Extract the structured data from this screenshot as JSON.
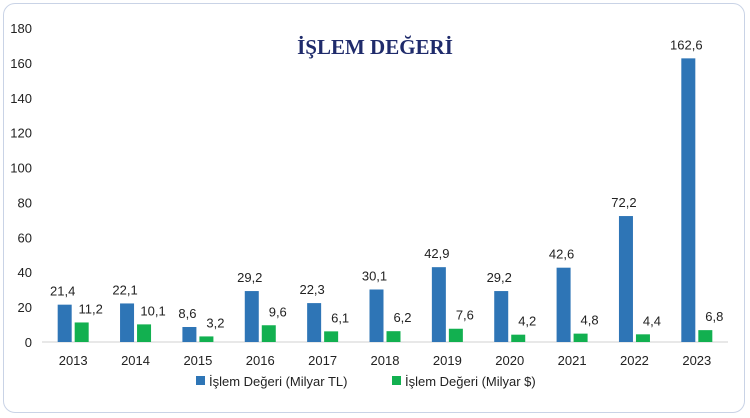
{
  "chart_data": {
    "type": "bar",
    "title": "İŞLEM DEĞERİ",
    "categories": [
      "2013",
      "2014",
      "2015",
      "2016",
      "2017",
      "2018",
      "2019",
      "2020",
      "2021",
      "2022",
      "2023"
    ],
    "series": [
      {
        "name": "İşlem Değeri (Milyar TL)",
        "color": "#2e75b6",
        "values": [
          21.4,
          22.1,
          8.6,
          29.2,
          22.3,
          30.1,
          42.9,
          29.2,
          42.6,
          72.2,
          162.6
        ],
        "labels": [
          "21,4",
          "22,1",
          "8,6",
          "29,2",
          "22,3",
          "30,1",
          "42,9",
          "29,2",
          "42,6",
          "72,2",
          "162,6"
        ]
      },
      {
        "name": "İşlem Değeri (Milyar $)",
        "color": "#12b050",
        "values": [
          11.2,
          10.1,
          3.2,
          9.6,
          6.1,
          6.2,
          7.6,
          4.2,
          4.8,
          4.4,
          6.8
        ],
        "labels": [
          "11,2",
          "10,1",
          "3,2",
          "9,6",
          "6,1",
          "6,2",
          "7,6",
          "4,2",
          "4,8",
          "4,4",
          "6,8"
        ]
      }
    ],
    "xlabel": "",
    "ylabel": "",
    "ylim": [
      0,
      180
    ],
    "yticks": [
      0,
      20,
      40,
      60,
      80,
      100,
      120,
      140,
      160,
      180
    ],
    "grid": false,
    "legend": "bottom"
  }
}
